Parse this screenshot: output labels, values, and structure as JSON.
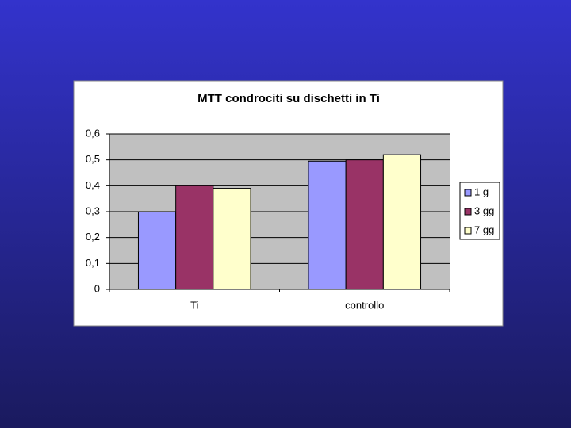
{
  "chart_data": {
    "type": "bar",
    "title": "MTT condrociti su dischetti in Ti",
    "categories": [
      "Ti",
      "controllo"
    ],
    "series": [
      {
        "name": "1 g",
        "color": "#9999ff",
        "values": [
          0.3,
          0.495
        ]
      },
      {
        "name": "3 gg",
        "color": "#993366",
        "values": [
          0.4,
          0.5
        ]
      },
      {
        "name": "7 gg",
        "color": "#ffffcc",
        "values": [
          0.39,
          0.52
        ]
      }
    ],
    "ylim": [
      0,
      0.6
    ],
    "yticks": [
      0,
      {
        "value": 0.1,
        "label": "0,1"
      },
      {
        "value": 0.2,
        "label": "0,2"
      },
      {
        "value": 0.3,
        "label": "0,3"
      },
      {
        "value": 0.4,
        "label": "0,4"
      },
      {
        "value": 0.5,
        "label": "0,5"
      },
      {
        "value": 0.6,
        "label": "0,6"
      }
    ],
    "grid": true,
    "legend": "right"
  }
}
